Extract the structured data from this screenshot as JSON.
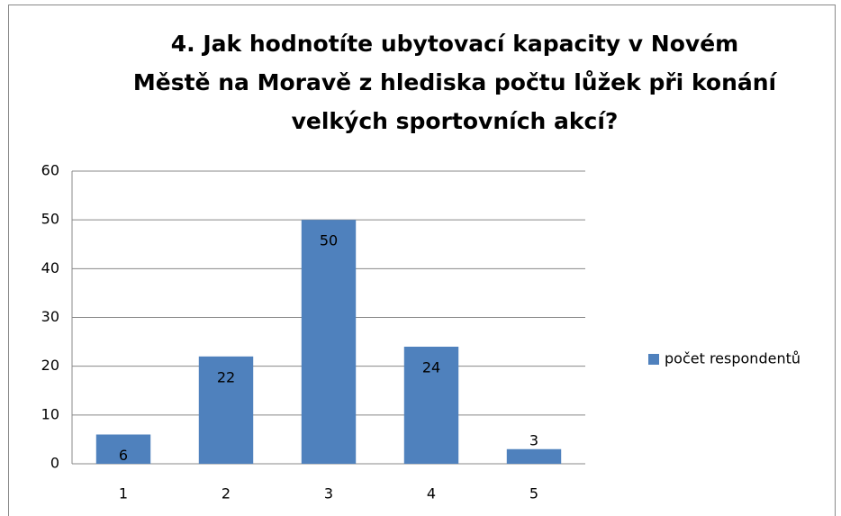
{
  "chart_data": {
    "type": "bar",
    "title": [
      "4. Jak hodnotíte ubytovací kapacity v Novém",
      "Městě na Moravě z hlediska počtu lůžek při konání",
      "velkých sportovních akcí?"
    ],
    "categories": [
      "1",
      "2",
      "3",
      "4",
      "5"
    ],
    "series": [
      {
        "name": "počet respondentů",
        "color": "#4f81bd",
        "values": [
          6,
          22,
          50,
          24,
          3
        ]
      }
    ],
    "ylim": [
      0,
      60
    ],
    "yticks": [
      0,
      10,
      20,
      30,
      40,
      50,
      60
    ],
    "grid": true,
    "legend": "right",
    "data_labels": true
  }
}
